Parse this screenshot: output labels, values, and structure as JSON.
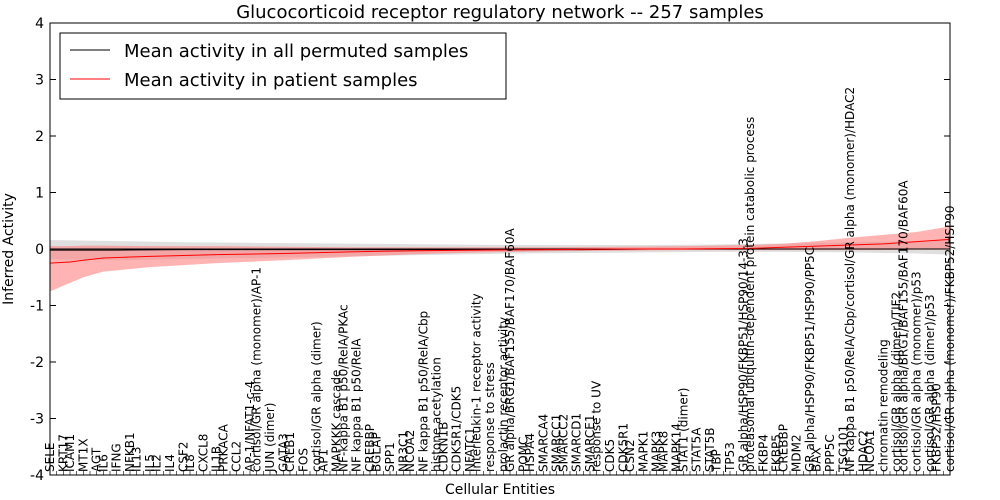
{
  "chart_data": {
    "type": "line",
    "title": "Glucocorticoid receptor regulatory network -- 257 samples",
    "xlabel": "Cellular Entities",
    "ylabel": "Inferred Activity",
    "ylim": [
      -4,
      4
    ],
    "yticks": [
      -4,
      -3,
      -2,
      -1,
      0,
      1,
      2,
      3,
      4
    ],
    "n_entities": 136,
    "grid": false,
    "legend_position": "top-left",
    "x_tick_labels": [
      "SELE",
      "KRT17",
      "ICAM1",
      "MT1X",
      "AGT",
      "IL6",
      "IFNG",
      "NFKB1",
      "IL13",
      "IL5",
      "IL2",
      "IL4",
      "CSF2",
      "IL8",
      "CXCL8",
      "IL1B",
      "PRKACA",
      "CCL2",
      "AP-1/NFAT1-c-4",
      "cortisol/GR alpha (monomer)/AP-1",
      "JUN (dimer)",
      "GATA3",
      "CREB1",
      "FOS",
      "cortisol/GR alpha (dimer)",
      "AP1",
      "MAPKKK cascade",
      "NF-kappa B1 p50/RelA/PKAc",
      "NF kappa B1 p50/RelA",
      "CREBBP",
      "BGLAP",
      "SPP1",
      "NR3C1",
      "NCOA2",
      "NF kappa B1 p50/RelA/Cbp",
      "histone acetylation",
      "CDKN1B",
      "CDK5R1/CDK5",
      "NFATC1",
      "interleukin-1 receptor activity",
      "response to stress",
      "prolactin receptor activity",
      "GR alpha/BRG1/BAF155/BAF170/BAF60A",
      "POMC",
      "HSPA4",
      "SMARCA4",
      "SMARCC1",
      "SMARCC2",
      "SMARCD1",
      "SMARCE1",
      "response to UV",
      "CDK5",
      "CDK5R1",
      "CSN2",
      "MAPK1",
      "MAPK3",
      "MAPK8",
      "MAPK14",
      "STAT1 (dimer)",
      "STAT5A",
      "STAT5B",
      "TBP",
      "TP53",
      "GR alpha/HSP90/FKBP51/HSP90/14-3-3",
      "proteasomal ubiquitin-dependent protein catabolic process",
      "FKBP4",
      "FKBP5",
      "CREBBP",
      "MDM2",
      "GR alpha/HSP90/FKBP51/HSP90/PP5C",
      "BAX",
      "PPP5C",
      "TSG101",
      "NF kappa B1 p50/RelA/Cbp/cortisol/GR alpha (monomer)/HDAC2",
      "HDAC2",
      "NCOA1",
      "chromatin remodeling",
      "cortisol/GR alpha (dimer)/TIF2",
      "cortisol/GR alpha/BRG1/BAF155/BAF170/BAF60A",
      "cortisol/GR alpha (monomer)/p53",
      "cortisol/GR alpha (dimer)/p53",
      "FKBP52/HSP90",
      "cortisol/GR alpha (monomer)/FKBP52/HSP90"
    ],
    "series": [
      {
        "name": "Mean activity in all permuted samples",
        "color": "#000000",
        "x": [
          0,
          10,
          20,
          30,
          40,
          50,
          60,
          70,
          80,
          90,
          100,
          110,
          120,
          130,
          135
        ],
        "mean": [
          -0.02,
          -0.02,
          -0.01,
          -0.01,
          -0.01,
          -0.01,
          -0.01,
          -0.01,
          -0.01,
          0,
          0,
          0,
          0,
          0,
          0
        ],
        "lower": [
          -0.18,
          -0.2,
          -0.18,
          -0.16,
          -0.14,
          -0.12,
          -0.1,
          -0.08,
          -0.07,
          -0.06,
          -0.05,
          -0.05,
          -0.06,
          -0.08,
          -0.1
        ],
        "upper": [
          0.16,
          0.14,
          0.12,
          0.11,
          0.1,
          0.09,
          0.08,
          0.07,
          0.07,
          0.07,
          0.08,
          0.1,
          0.12,
          0.14,
          0.16
        ]
      },
      {
        "name": "Mean activity in patient samples",
        "color": "#ff0000",
        "fill_color": "#ff8080",
        "x": [
          0,
          3,
          5,
          8,
          15,
          25,
          35,
          45,
          55,
          65,
          75,
          85,
          95,
          105,
          110,
          115,
          120,
          125,
          130,
          135
        ],
        "mean": [
          -0.25,
          -0.23,
          -0.2,
          -0.16,
          -0.13,
          -0.1,
          -0.08,
          -0.05,
          -0.03,
          -0.02,
          -0.01,
          0,
          0,
          0.01,
          0.03,
          0.05,
          0.07,
          0.09,
          0.13,
          0.17
        ],
        "lower": [
          -0.75,
          -0.6,
          -0.5,
          -0.4,
          -0.32,
          -0.25,
          -0.2,
          -0.14,
          -0.09,
          -0.06,
          -0.04,
          -0.03,
          -0.02,
          -0.02,
          -0.02,
          -0.02,
          -0.02,
          -0.02,
          -0.01,
          -0.01
        ],
        "upper": [
          0.05,
          0.05,
          0.06,
          0.06,
          0.05,
          0.05,
          0.04,
          0.03,
          0.03,
          0.03,
          0.03,
          0.04,
          0.05,
          0.07,
          0.09,
          0.14,
          0.2,
          0.25,
          0.3,
          0.4
        ]
      }
    ]
  }
}
